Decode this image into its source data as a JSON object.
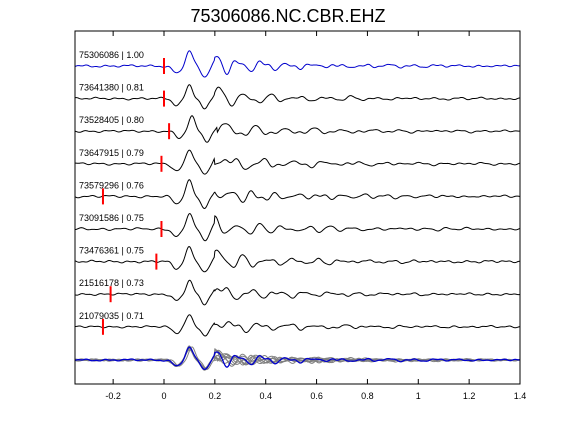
{
  "title": "75306086.NC.CBR.EHZ",
  "chart_data": {
    "type": "line",
    "title": "75306086.NC.CBR.EHZ",
    "xlabel": "",
    "ylabel": "",
    "xlim": [
      -0.35,
      1.4
    ],
    "xticks": [
      -0.2,
      0,
      0.2,
      0.4,
      0.6,
      0.8,
      1,
      1.2,
      1.4
    ],
    "xtick_labels": [
      "-0.2",
      "0",
      "0.2",
      "0.4",
      "0.6",
      "0.8",
      "1",
      "1.2",
      "1.4"
    ],
    "grid": false,
    "colors": {
      "reference": "#0000cc",
      "trace": "#000000",
      "pick": "#ff0000",
      "stack": "#808080"
    },
    "traces": [
      {
        "id": "75306086",
        "cc": "1.00",
        "label": "75306086 | 1.00",
        "pick": 0.0,
        "shift": 0.0,
        "amp": 1.0,
        "seed": 1,
        "reference": true
      },
      {
        "id": "73641380",
        "cc": "0.81",
        "label": "73641380 | 0.81",
        "pick": 0.0,
        "shift": 0.0,
        "amp": 0.95,
        "seed": 2,
        "reference": false
      },
      {
        "id": "73528405",
        "cc": "0.80",
        "label": "73528405 | 0.80",
        "pick": 0.02,
        "shift": 0.01,
        "amp": 0.95,
        "seed": 3,
        "reference": false
      },
      {
        "id": "73647915",
        "cc": "0.79",
        "label": "73647915 | 0.79",
        "pick": -0.01,
        "shift": 0.0,
        "amp": 1.0,
        "seed": 4,
        "reference": false
      },
      {
        "id": "73579296",
        "cc": "0.76",
        "label": "73579296 | 0.76",
        "pick": -0.24,
        "shift": 0.0,
        "amp": 1.05,
        "seed": 5,
        "reference": false
      },
      {
        "id": "73091586",
        "cc": "0.75",
        "label": "73091586 | 0.75",
        "pick": -0.01,
        "shift": 0.0,
        "amp": 1.05,
        "seed": 6,
        "reference": false
      },
      {
        "id": "73476361",
        "cc": "0.75",
        "label": "73476361 | 0.75",
        "pick": -0.03,
        "shift": 0.0,
        "amp": 1.0,
        "seed": 7,
        "reference": false
      },
      {
        "id": "21516178",
        "cc": "0.73",
        "label": "21516178 | 0.73",
        "pick": -0.21,
        "shift": 0.0,
        "amp": 0.9,
        "seed": 8,
        "reference": false
      },
      {
        "id": "21079035",
        "cc": "0.71",
        "label": "21079035 | 0.71",
        "pick": -0.24,
        "shift": 0.0,
        "amp": 0.85,
        "seed": 9,
        "reference": false
      }
    ],
    "stack": {
      "label": "",
      "note": "overlay of all traces"
    }
  }
}
